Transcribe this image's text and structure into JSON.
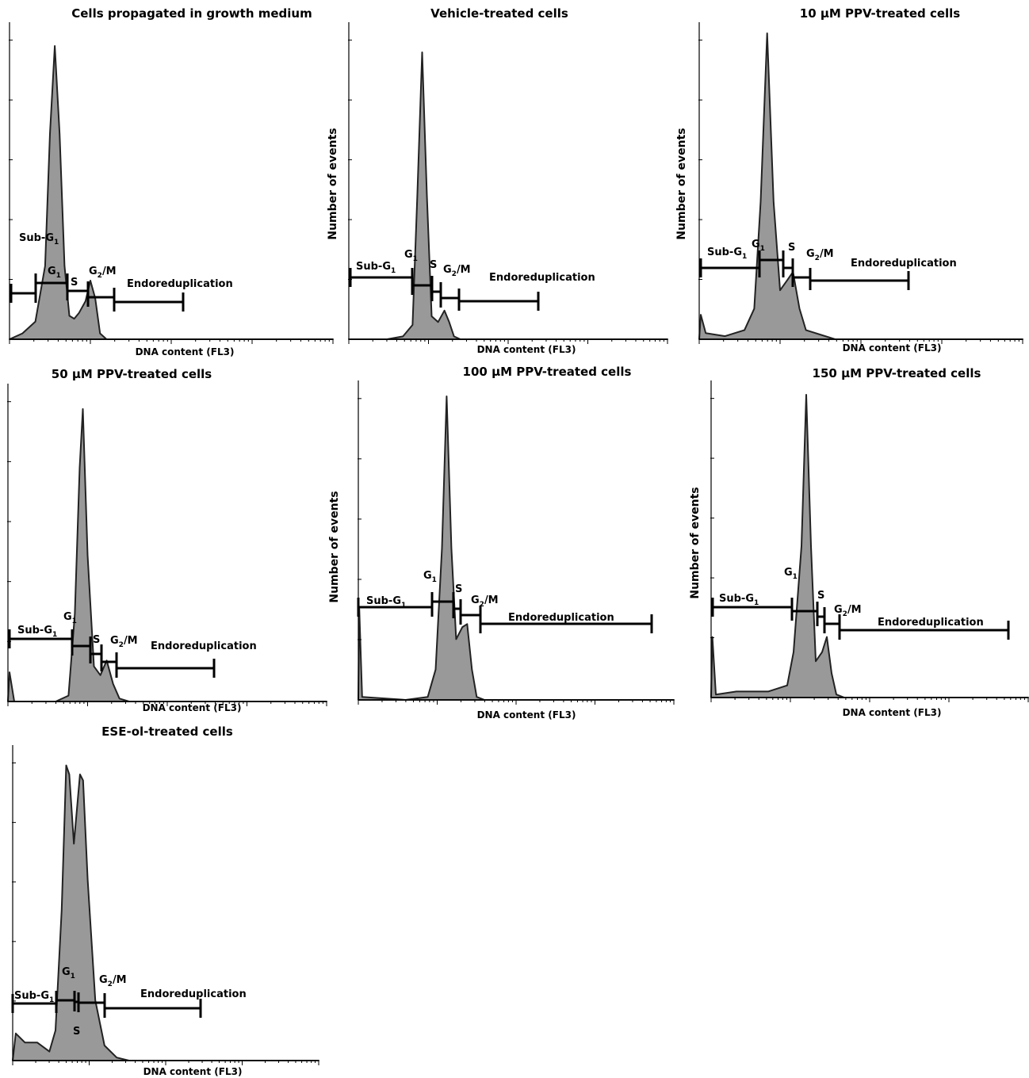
{
  "chart_data": [
    {
      "type": "area",
      "title": "Cells propagated in growth medium",
      "xlabel": "DNA content (FL3)",
      "ylabel": "",
      "x_scale": "log",
      "profile": [
        [
          0,
          0
        ],
        [
          0.04,
          0.02
        ],
        [
          0.08,
          0.06
        ],
        [
          0.11,
          0.25
        ],
        [
          0.125,
          0.7
        ],
        [
          0.14,
          1.0
        ],
        [
          0.155,
          0.7
        ],
        [
          0.17,
          0.25
        ],
        [
          0.185,
          0.08
        ],
        [
          0.2,
          0.07
        ],
        [
          0.215,
          0.09
        ],
        [
          0.235,
          0.13
        ],
        [
          0.25,
          0.2
        ],
        [
          0.265,
          0.14
        ],
        [
          0.28,
          0.02
        ],
        [
          0.3,
          0
        ],
        [
          1,
          0
        ]
      ],
      "gates": [
        {
          "name": "Sub-G1",
          "label": "Sub-",
          "sub": "1",
          "main": "G"
        },
        {
          "name": "G1",
          "label": "",
          "main": "G",
          "sub": "1"
        },
        {
          "name": "S",
          "label": "S"
        },
        {
          "name": "G2/M",
          "label": "",
          "main": "G",
          "sub": "2",
          "tail": "/M"
        },
        {
          "name": "Endoreduplication",
          "label": "Endoreduplication"
        }
      ]
    },
    {
      "type": "area",
      "title": "Vehicle-treated cells",
      "xlabel": "DNA content (FL3)",
      "ylabel": "Number of events",
      "x_scale": "log",
      "profile": [
        [
          0,
          0
        ],
        [
          0.12,
          0
        ],
        [
          0.17,
          0.01
        ],
        [
          0.2,
          0.05
        ],
        [
          0.215,
          0.5
        ],
        [
          0.23,
          1.0
        ],
        [
          0.245,
          0.5
        ],
        [
          0.26,
          0.08
        ],
        [
          0.28,
          0.06
        ],
        [
          0.3,
          0.1
        ],
        [
          0.315,
          0.06
        ],
        [
          0.33,
          0.01
        ],
        [
          0.35,
          0
        ],
        [
          1,
          0
        ]
      ],
      "gates": [
        {
          "name": "Sub-G1",
          "label": "Sub-",
          "main": "G",
          "sub": "1"
        },
        {
          "name": "G1",
          "label": "",
          "main": "G",
          "sub": "1"
        },
        {
          "name": "S",
          "label": "S"
        },
        {
          "name": "G2/M",
          "label": "",
          "main": "G",
          "sub": "2",
          "tail": "/M"
        },
        {
          "name": "Endoreduplication",
          "label": "Endoreduplication"
        }
      ]
    },
    {
      "type": "area",
      "title": "10 µM PPV-treated cells",
      "xlabel": "DNA content (FL3)",
      "ylabel": "Number of events",
      "x_scale": "log",
      "profile": [
        [
          0,
          0
        ],
        [
          0.005,
          0.08
        ],
        [
          0.02,
          0.02
        ],
        [
          0.08,
          0.01
        ],
        [
          0.14,
          0.03
        ],
        [
          0.17,
          0.1
        ],
        [
          0.19,
          0.45
        ],
        [
          0.21,
          1.0
        ],
        [
          0.23,
          0.45
        ],
        [
          0.25,
          0.16
        ],
        [
          0.27,
          0.19
        ],
        [
          0.29,
          0.22
        ],
        [
          0.31,
          0.1
        ],
        [
          0.33,
          0.03
        ],
        [
          0.42,
          0
        ],
        [
          1,
          0
        ]
      ],
      "gates": [
        {
          "name": "Sub-G1",
          "label": "Sub-",
          "main": "G",
          "sub": "1"
        },
        {
          "name": "G1",
          "label": "",
          "main": "G",
          "sub": "1"
        },
        {
          "name": "S",
          "label": "S"
        },
        {
          "name": "G2/M",
          "label": "",
          "main": "G",
          "sub": "2",
          "tail": "/M"
        },
        {
          "name": "Endoreduplication",
          "label": "Endoreduplication"
        }
      ]
    },
    {
      "type": "area",
      "title": "50 µM PPV-treated cells",
      "xlabel": "DNA content (FL3)",
      "ylabel": "",
      "x_scale": "log",
      "profile": [
        [
          0,
          0
        ],
        [
          0.005,
          0.1
        ],
        [
          0.02,
          0.0
        ],
        [
          0.15,
          0
        ],
        [
          0.19,
          0.02
        ],
        [
          0.21,
          0.3
        ],
        [
          0.225,
          0.8
        ],
        [
          0.235,
          1.0
        ],
        [
          0.25,
          0.5
        ],
        [
          0.27,
          0.12
        ],
        [
          0.29,
          0.09
        ],
        [
          0.31,
          0.14
        ],
        [
          0.33,
          0.06
        ],
        [
          0.35,
          0.01
        ],
        [
          0.38,
          0
        ],
        [
          1,
          0
        ]
      ],
      "gates": [
        {
          "name": "Sub-G1",
          "label": "Sub-",
          "main": "G",
          "sub": "1"
        },
        {
          "name": "G1",
          "label": "",
          "main": "G",
          "sub": "1"
        },
        {
          "name": "S",
          "label": "S"
        },
        {
          "name": "G2/M",
          "label": "",
          "main": "G",
          "sub": "2",
          "tail": "/M"
        },
        {
          "name": "Endoreduplication",
          "label": "Endoreduplication"
        }
      ]
    },
    {
      "type": "area",
      "title": "100 µM PPV-treated cells",
      "xlabel": "DNA content (FL3)",
      "ylabel": "Number of events",
      "x_scale": "log",
      "profile": [
        [
          0,
          0
        ],
        [
          0.003,
          0.3
        ],
        [
          0.012,
          0.01
        ],
        [
          0.15,
          0
        ],
        [
          0.22,
          0.01
        ],
        [
          0.245,
          0.1
        ],
        [
          0.265,
          0.5
        ],
        [
          0.28,
          1.0
        ],
        [
          0.295,
          0.5
        ],
        [
          0.31,
          0.2
        ],
        [
          0.33,
          0.24
        ],
        [
          0.345,
          0.25
        ],
        [
          0.36,
          0.1
        ],
        [
          0.375,
          0.01
        ],
        [
          0.4,
          0
        ],
        [
          1,
          0
        ]
      ],
      "gates": [
        {
          "name": "Sub-G1",
          "label": "Sub-",
          "main": "G",
          "sub": "1"
        },
        {
          "name": "G1",
          "label": "",
          "main": "G",
          "sub": "1"
        },
        {
          "name": "S",
          "label": "S"
        },
        {
          "name": "G2/M",
          "label": "",
          "main": "G",
          "sub": "2",
          "tail": "/M"
        },
        {
          "name": "Endoreduplication",
          "label": "Endoreduplication"
        }
      ]
    },
    {
      "type": "area",
      "title": "150 µM PPV-treated cells",
      "xlabel": "DNA content (FL3)",
      "ylabel": "Number of events",
      "x_scale": "log",
      "profile": [
        [
          0,
          0
        ],
        [
          0.004,
          0.2
        ],
        [
          0.015,
          0.01
        ],
        [
          0.08,
          0.02
        ],
        [
          0.18,
          0.02
        ],
        [
          0.24,
          0.04
        ],
        [
          0.26,
          0.15
        ],
        [
          0.285,
          0.5
        ],
        [
          0.3,
          1.0
        ],
        [
          0.315,
          0.5
        ],
        [
          0.33,
          0.12
        ],
        [
          0.35,
          0.15
        ],
        [
          0.365,
          0.2
        ],
        [
          0.38,
          0.08
        ],
        [
          0.395,
          0.01
        ],
        [
          0.42,
          0
        ],
        [
          1,
          0
        ]
      ],
      "gates": [
        {
          "name": "Sub-G1",
          "label": "Sub-",
          "main": "G",
          "sub": "1"
        },
        {
          "name": "G1",
          "label": "",
          "main": "G",
          "sub": "1"
        },
        {
          "name": "S",
          "label": "S"
        },
        {
          "name": "G2/M",
          "label": "",
          "main": "G",
          "sub": "2",
          "tail": "/M"
        },
        {
          "name": "Endoreduplication",
          "label": "Endoreduplication"
        }
      ]
    },
    {
      "type": "area",
      "title": "ESE-ol-treated cells",
      "xlabel": "DNA content (FL3)",
      "ylabel": "",
      "x_scale": "log",
      "profile": [
        [
          0,
          0
        ],
        [
          0.01,
          0.09
        ],
        [
          0.04,
          0.06
        ],
        [
          0.08,
          0.06
        ],
        [
          0.12,
          0.03
        ],
        [
          0.14,
          0.1
        ],
        [
          0.16,
          0.5
        ],
        [
          0.175,
          0.98
        ],
        [
          0.185,
          0.95
        ],
        [
          0.2,
          0.72
        ],
        [
          0.22,
          0.95
        ],
        [
          0.23,
          0.93
        ],
        [
          0.245,
          0.6
        ],
        [
          0.27,
          0.2
        ],
        [
          0.3,
          0.05
        ],
        [
          0.34,
          0.01
        ],
        [
          0.38,
          0
        ],
        [
          1,
          0
        ]
      ],
      "gates": [
        {
          "name": "Sub-G1",
          "label": "Sub-",
          "main": "G",
          "sub": "1"
        },
        {
          "name": "G1",
          "label": "",
          "main": "G",
          "sub": "1"
        },
        {
          "name": "S",
          "label": "S"
        },
        {
          "name": "G2/M",
          "label": "",
          "main": "G",
          "sub": "2",
          "tail": "/M"
        },
        {
          "name": "Endoreduplication",
          "label": "Endoreduplication"
        }
      ]
    }
  ]
}
